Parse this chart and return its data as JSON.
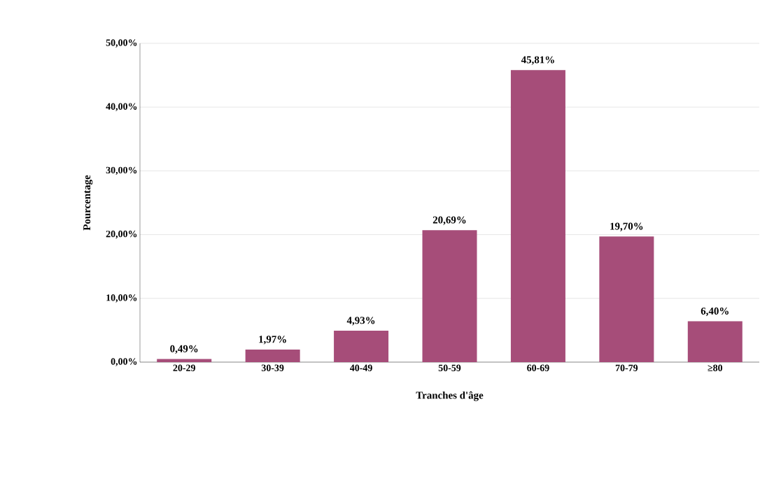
{
  "chart_data": {
    "type": "bar",
    "xlabel": "Tranches d'âge",
    "ylabel": "Pourcentage",
    "categories": [
      "20-29",
      "30-39",
      "40-49",
      "50-59",
      "60-69",
      "70-79",
      "≥80"
    ],
    "values": [
      0.49,
      1.97,
      4.93,
      20.69,
      45.81,
      19.7,
      6.4
    ],
    "value_labels": [
      "0,49%",
      "1,97%",
      "4,93%",
      "20,69%",
      "45,81%",
      "19,70%",
      "6,40%"
    ],
    "color": "#a64d79",
    "ylim": [
      0,
      50
    ],
    "yticks": [
      {
        "value": 0,
        "label": "0,00%"
      },
      {
        "value": 10,
        "label": "10,00%"
      },
      {
        "value": 20,
        "label": "20,00%"
      },
      {
        "value": 30,
        "label": "30,00%"
      },
      {
        "value": 40,
        "label": "40,00%"
      },
      {
        "value": 50,
        "label": "50,00%"
      }
    ],
    "grid": "y"
  }
}
